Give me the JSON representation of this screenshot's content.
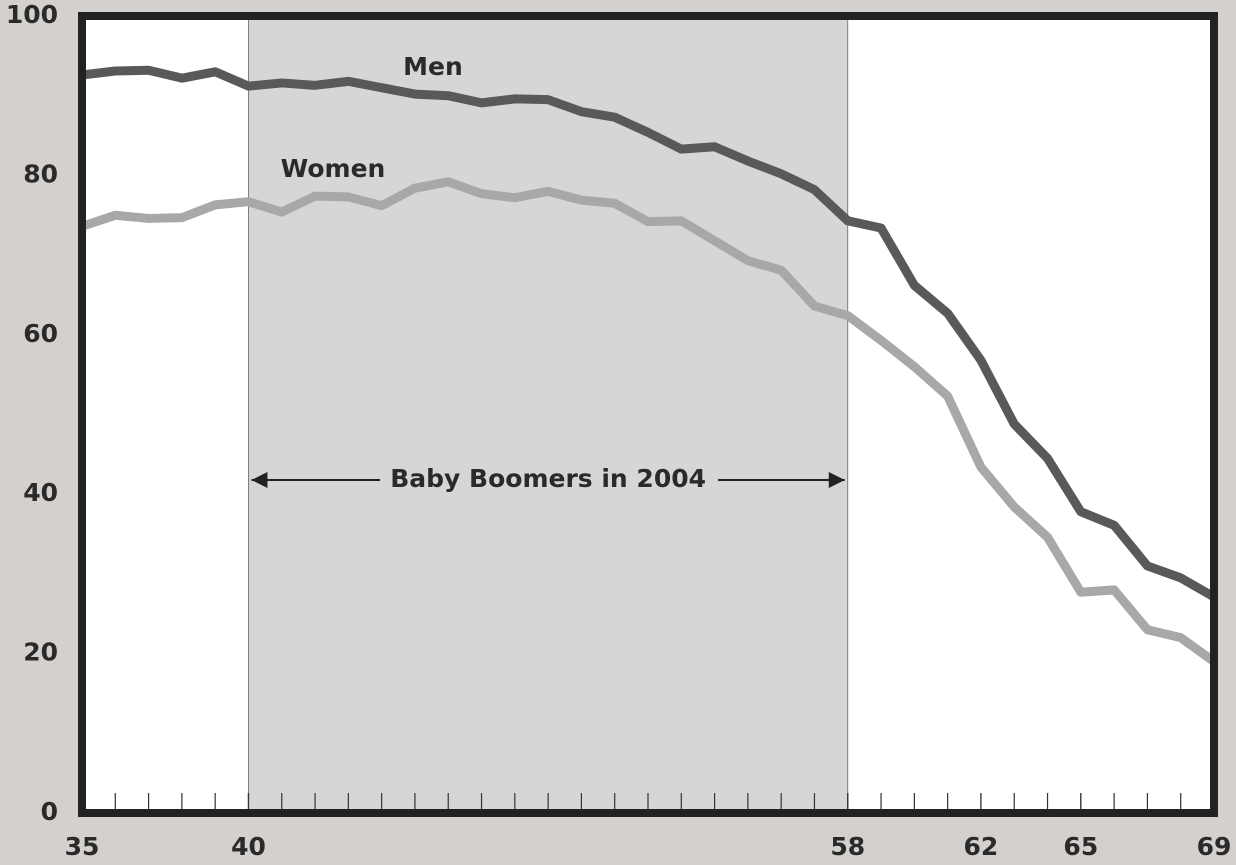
{
  "chart_data": {
    "type": "line",
    "x": [
      35,
      36,
      37,
      38,
      39,
      40,
      41,
      42,
      43,
      44,
      45,
      46,
      47,
      48,
      49,
      50,
      51,
      52,
      53,
      54,
      55,
      56,
      57,
      58,
      59,
      60,
      61,
      62,
      63,
      64,
      65,
      66,
      67,
      68,
      69
    ],
    "series": [
      {
        "name": "Men",
        "color": "#58595b",
        "values": [
          92.6,
          93.1,
          93.2,
          92.2,
          93,
          91.2,
          91.6,
          91.3,
          91.8,
          91,
          90.2,
          90,
          89.1,
          89.6,
          89.5,
          88,
          87.3,
          85.4,
          83.3,
          83.6,
          81.8,
          80.2,
          78.2,
          74.3,
          73.4,
          66.2,
          62.7,
          56.8,
          48.8,
          44.5,
          37.8,
          36.1,
          31,
          29.5,
          27.1
        ]
      },
      {
        "name": "Women",
        "color": "#a7a8aa",
        "values": [
          73.6,
          75,
          74.6,
          74.7,
          76.3,
          76.7,
          75.4,
          77.4,
          77.3,
          76.2,
          78.4,
          79.2,
          77.7,
          77.2,
          78,
          76.9,
          76.5,
          74.2,
          74.3,
          71.8,
          69.3,
          68.1,
          63.6,
          62.4,
          59.3,
          56,
          52.3,
          43.4,
          38.4,
          34.6,
          27.7,
          28,
          23,
          22,
          19
        ]
      }
    ],
    "xlim": [
      35,
      69
    ],
    "xticks": [
      35,
      40,
      58,
      62,
      65,
      69
    ],
    "ylim": [
      0,
      100
    ],
    "yticks": [
      0,
      20,
      40,
      60,
      80,
      100
    ],
    "grid": false,
    "shade": {
      "x": [
        40,
        58
      ],
      "label": "Baby Boomers in 2004",
      "color": "#d6d6d8"
    }
  }
}
